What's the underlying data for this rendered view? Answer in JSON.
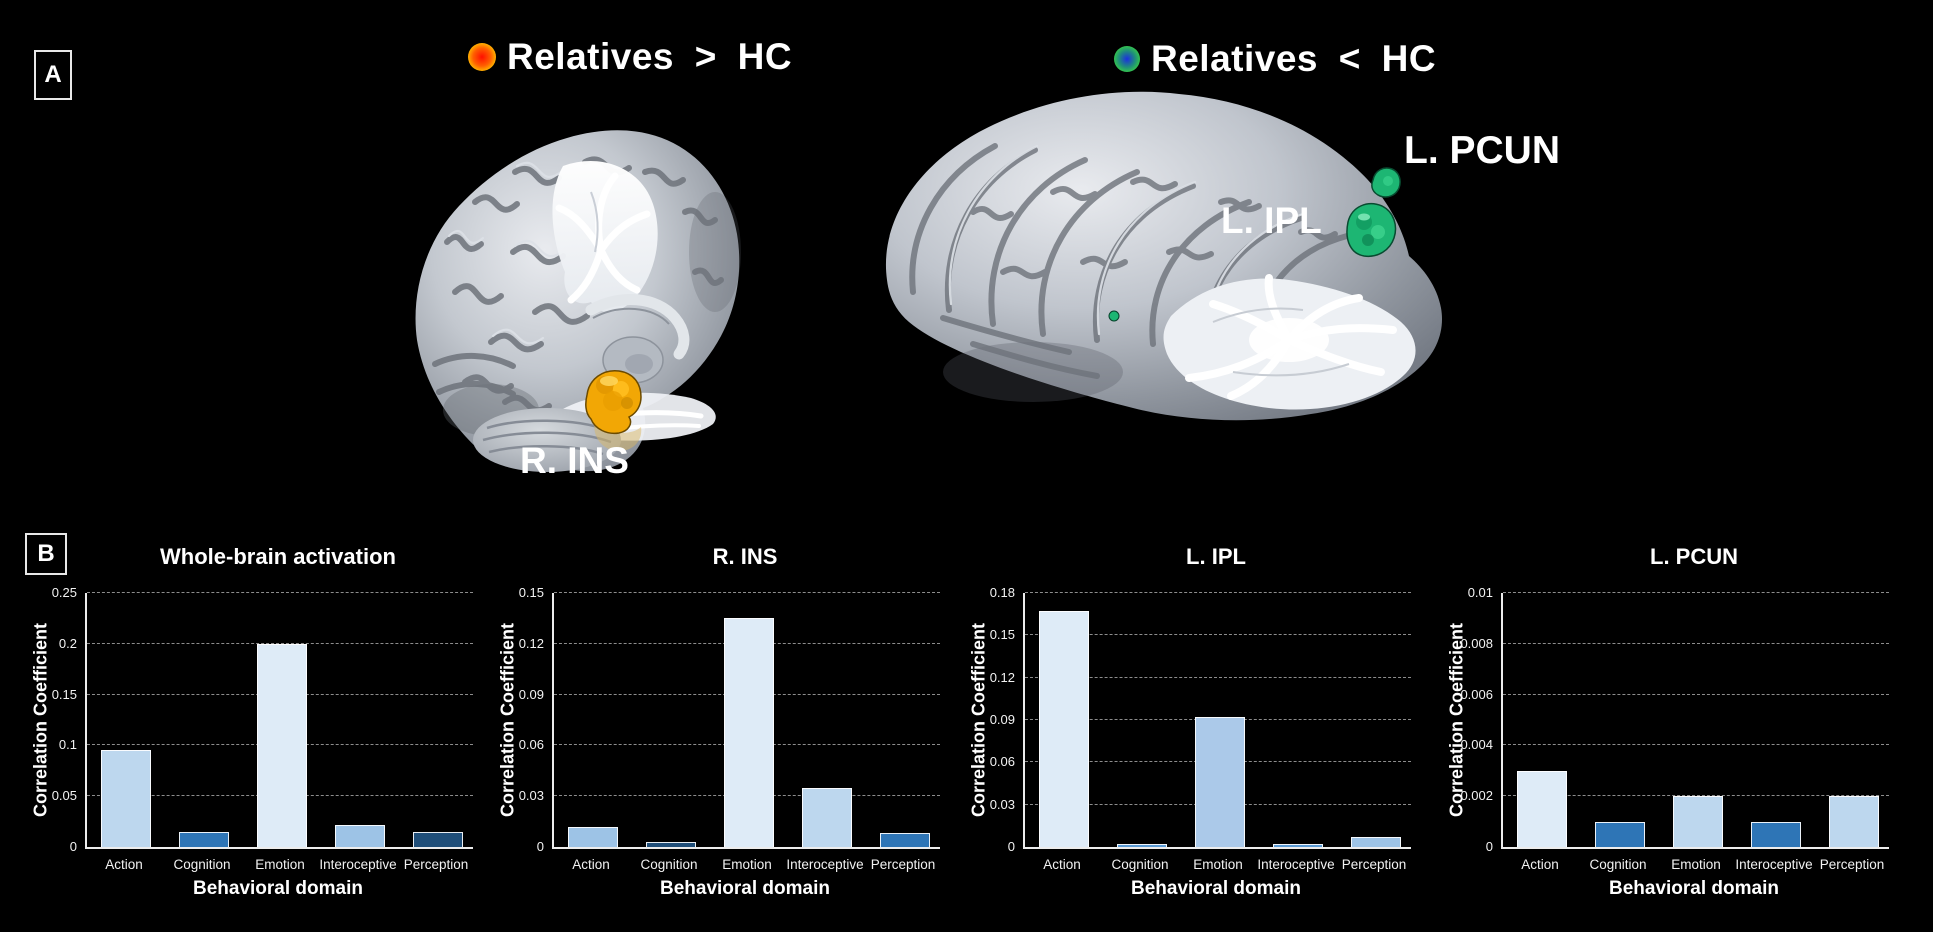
{
  "figure": {
    "background_color": "#000000",
    "panel_a_label": "A",
    "panel_b_label": "B"
  },
  "panel_a": {
    "left": {
      "title": "Relatives > HC",
      "legend_dot": {
        "center_color": "#ff0f00",
        "mid_color": "#ff5f00",
        "edge_color": "#ffc800"
      },
      "cluster_label": "R. INS",
      "cluster_color": "#f2a705"
    },
    "right": {
      "title": "Relatives < HC",
      "legend_dot": {
        "center_color": "#1c2fe0",
        "mid_color": "#1f8f7a",
        "edge_color": "#39d043"
      },
      "cluster_labels": {
        "ipl": "L. IPL",
        "pcun": "L. PCUN"
      },
      "cluster_color": "#1db673"
    }
  },
  "chart_data": [
    {
      "type": "bar",
      "title": "Whole-brain activation",
      "xlabel": "Behavioral domain",
      "ylabel": "Correlation Coefficient",
      "categories": [
        "Action",
        "Cognition",
        "Emotion",
        "Interoceptive",
        "Perception"
      ],
      "values": [
        0.095,
        0.015,
        0.2,
        0.022,
        0.015
      ],
      "bar_colors": [
        "#bdd7ee",
        "#2e75b6",
        "#deebf7",
        "#9dc3e6",
        "#1f4e79"
      ],
      "ylim": [
        0,
        0.25
      ],
      "yticks": [
        0,
        0.05,
        0.1,
        0.15,
        0.2,
        0.25
      ],
      "ytick_labels": [
        "0",
        "0.05",
        "0.1",
        "0.15",
        "0.2",
        "0.25"
      ],
      "grid": "dashed-horizontal",
      "legend": "none"
    },
    {
      "type": "bar",
      "title": "R. INS",
      "xlabel": "Behavioral domain",
      "ylabel": "Correlation Coefficient",
      "categories": [
        "Action",
        "Cognition",
        "Emotion",
        "Interoceptive",
        "Perception"
      ],
      "values": [
        0.012,
        0.003,
        0.135,
        0.035,
        0.008
      ],
      "bar_colors": [
        "#9dc3e6",
        "#1f4e79",
        "#deebf7",
        "#bdd7ee",
        "#2e75b6"
      ],
      "ylim": [
        0,
        0.15
      ],
      "yticks": [
        0,
        0.03,
        0.06,
        0.09,
        0.12,
        0.15
      ],
      "ytick_labels": [
        "0",
        "0.03",
        "0.06",
        "0.09",
        "0.12",
        "0.15"
      ],
      "grid": "dashed-horizontal",
      "legend": "none"
    },
    {
      "type": "bar",
      "title": "L. IPL",
      "xlabel": "Behavioral domain",
      "ylabel": "Correlation Coefficient",
      "categories": [
        "Action",
        "Cognition",
        "Emotion",
        "Interoceptive",
        "Perception"
      ],
      "values": [
        0.167,
        0.002,
        0.092,
        0.002,
        0.007
      ],
      "bar_colors": [
        "#deebf7",
        "#5b9bd5",
        "#abc9e9",
        "#5b9bd5",
        "#9dc3e6"
      ],
      "ylim": [
        0,
        0.18
      ],
      "yticks": [
        0,
        0.03,
        0.06,
        0.09,
        0.12,
        0.15,
        0.18
      ],
      "ytick_labels": [
        "0",
        "0.03",
        "0.06",
        "0.09",
        "0.12",
        "0.15",
        "0.18"
      ],
      "grid": "dashed-horizontal",
      "legend": "none"
    },
    {
      "type": "bar",
      "title": "L. PCUN",
      "xlabel": "Behavioral domain",
      "ylabel": "Correlation Coefficient",
      "categories": [
        "Action",
        "Cognition",
        "Emotion",
        "Interoceptive",
        "Perception"
      ],
      "values": [
        0.003,
        0.001,
        0.002,
        0.001,
        0.002
      ],
      "bar_colors": [
        "#deebf7",
        "#2e75b6",
        "#bdd7ee",
        "#2e75b6",
        "#bdd7ee"
      ],
      "ylim": [
        0,
        0.01
      ],
      "yticks": [
        0,
        0.002,
        0.004,
        0.006,
        0.008,
        0.01
      ],
      "ytick_labels": [
        "0",
        "0.002",
        "0.004",
        "0.006",
        "0.008",
        "0.01"
      ],
      "grid": "dashed-horizontal",
      "legend": "none"
    }
  ]
}
